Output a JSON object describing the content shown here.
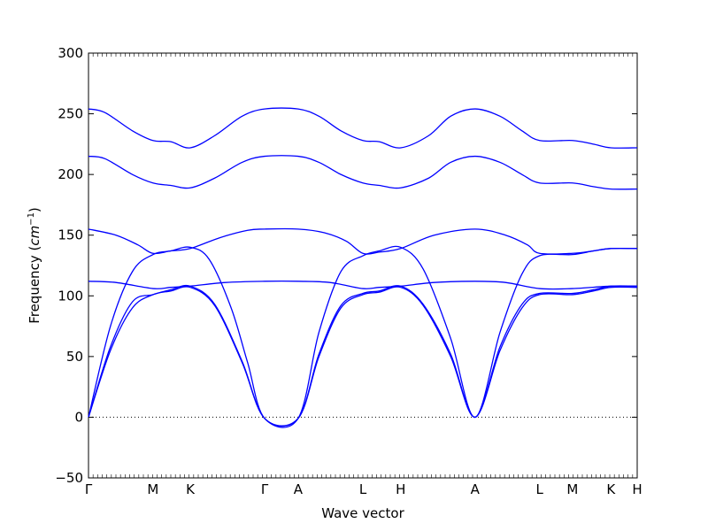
{
  "chart_data": {
    "type": "line",
    "xlabel": "Wave vector",
    "ylabel": "Frequency",
    "ylabel_unit": "cm",
    "ylabel_unit_exp": "−1",
    "ylim": [
      -50,
      300
    ],
    "yticks": [
      -50,
      0,
      50,
      100,
      150,
      200,
      250,
      300
    ],
    "xlim": [
      0,
      12
    ],
    "xticks": [
      {
        "label": "Γ",
        "x": 0
      },
      {
        "label": "M",
        "x": 1.175
      },
      {
        "label": "K",
        "x": 1.855
      },
      {
        "label": "Γ",
        "x": 3.21
      },
      {
        "label": "A",
        "x": 3.82
      },
      {
        "label": "L",
        "x": 5.0
      },
      {
        "label": "H",
        "x": 5.69
      },
      {
        "label": "A",
        "x": 7.045
      },
      {
        "label": "L",
        "x": 8.22
      },
      {
        "label": "M",
        "x": 8.82
      },
      {
        "label": "K",
        "x": 9.52
      },
      {
        "label": "H",
        "x": 10.0
      }
    ],
    "zero_line": true,
    "line_color": "#0000ff",
    "series": [
      {
        "points": [
          [
            0,
            0
          ],
          [
            0.4,
            55
          ],
          [
            0.8,
            90
          ],
          [
            1.175,
            101
          ],
          [
            1.5,
            104
          ],
          [
            1.855,
            107
          ],
          [
            2.3,
            92
          ],
          [
            2.8,
            45
          ],
          [
            3.21,
            -1
          ],
          [
            3.82,
            -1
          ],
          [
            4.2,
            50
          ],
          [
            4.6,
            90
          ],
          [
            5.0,
            101
          ],
          [
            5.3,
            103
          ],
          [
            5.69,
            107
          ],
          [
            6.1,
            92
          ],
          [
            6.6,
            50
          ],
          [
            7.045,
            0
          ],
          [
            7.5,
            55
          ],
          [
            7.9,
            90
          ],
          [
            8.22,
            101
          ],
          [
            8.82,
            101
          ],
          [
            9.2,
            104
          ],
          [
            9.52,
            107
          ],
          [
            10.0,
            107
          ]
        ]
      },
      {
        "points": [
          [
            0,
            0
          ],
          [
            0.4,
            58
          ],
          [
            0.8,
            95
          ],
          [
            1.175,
            101
          ],
          [
            1.5,
            105
          ],
          [
            1.855,
            108
          ],
          [
            2.3,
            93
          ],
          [
            2.8,
            46
          ],
          [
            3.21,
            -1
          ],
          [
            3.82,
            -1
          ],
          [
            4.2,
            52
          ],
          [
            4.6,
            92
          ],
          [
            5.0,
            102
          ],
          [
            5.3,
            104
          ],
          [
            5.69,
            108
          ],
          [
            6.1,
            93
          ],
          [
            6.6,
            52
          ],
          [
            7.045,
            0
          ],
          [
            7.5,
            58
          ],
          [
            7.9,
            93
          ],
          [
            8.22,
            102
          ],
          [
            8.82,
            102
          ],
          [
            9.2,
            105
          ],
          [
            9.52,
            108
          ],
          [
            10.0,
            108
          ]
        ]
      },
      {
        "points": [
          [
            0,
            0
          ],
          [
            0.4,
            75
          ],
          [
            0.8,
            120
          ],
          [
            1.175,
            134
          ],
          [
            1.5,
            137
          ],
          [
            1.855,
            140
          ],
          [
            2.2,
            130
          ],
          [
            2.6,
            90
          ],
          [
            2.9,
            45
          ],
          [
            3.21,
            -1
          ],
          [
            3.82,
            -1
          ],
          [
            4.2,
            70
          ],
          [
            4.6,
            120
          ],
          [
            5.0,
            133
          ],
          [
            5.3,
            137
          ],
          [
            5.69,
            140
          ],
          [
            6.1,
            122
          ],
          [
            6.6,
            65
          ],
          [
            7.045,
            0
          ],
          [
            7.5,
            70
          ],
          [
            7.9,
            118
          ],
          [
            8.22,
            133
          ],
          [
            8.82,
            134
          ],
          [
            9.2,
            137
          ],
          [
            9.52,
            139
          ],
          [
            10.0,
            139
          ]
        ]
      },
      {
        "points": [
          [
            0,
            112
          ],
          [
            0.5,
            111
          ],
          [
            1.175,
            106
          ],
          [
            1.5,
            107
          ],
          [
            1.855,
            108
          ],
          [
            2.5,
            111
          ],
          [
            3.21,
            112
          ],
          [
            3.82,
            112
          ],
          [
            4.4,
            111
          ],
          [
            5.0,
            106
          ],
          [
            5.3,
            107
          ],
          [
            5.69,
            108
          ],
          [
            6.3,
            111
          ],
          [
            7.045,
            112
          ],
          [
            7.6,
            111
          ],
          [
            8.22,
            106
          ],
          [
            8.82,
            106
          ],
          [
            9.52,
            108
          ],
          [
            10.0,
            108
          ]
        ]
      },
      {
        "points": [
          [
            0,
            155
          ],
          [
            0.5,
            150
          ],
          [
            0.9,
            142
          ],
          [
            1.175,
            135
          ],
          [
            1.5,
            137
          ],
          [
            1.855,
            139
          ],
          [
            2.4,
            148
          ],
          [
            2.9,
            154
          ],
          [
            3.21,
            155
          ],
          [
            3.82,
            155
          ],
          [
            4.3,
            152
          ],
          [
            4.7,
            145
          ],
          [
            5.0,
            135
          ],
          [
            5.3,
            136
          ],
          [
            5.69,
            139
          ],
          [
            6.3,
            150
          ],
          [
            7.045,
            155
          ],
          [
            7.6,
            150
          ],
          [
            8.0,
            142
          ],
          [
            8.22,
            135
          ],
          [
            8.82,
            135
          ],
          [
            9.2,
            137
          ],
          [
            9.52,
            139
          ],
          [
            10.0,
            139
          ]
        ]
      },
      {
        "points": [
          [
            0,
            215
          ],
          [
            0.3,
            213
          ],
          [
            0.8,
            200
          ],
          [
            1.175,
            193
          ],
          [
            1.5,
            191
          ],
          [
            1.855,
            189
          ],
          [
            2.3,
            197
          ],
          [
            2.8,
            210
          ],
          [
            3.21,
            215
          ],
          [
            3.82,
            215
          ],
          [
            4.2,
            210
          ],
          [
            4.6,
            200
          ],
          [
            5.0,
            193
          ],
          [
            5.3,
            191
          ],
          [
            5.69,
            189
          ],
          [
            6.2,
            197
          ],
          [
            6.6,
            210
          ],
          [
            7.045,
            215
          ],
          [
            7.5,
            210
          ],
          [
            7.9,
            200
          ],
          [
            8.22,
            193
          ],
          [
            8.82,
            193
          ],
          [
            9.2,
            190
          ],
          [
            9.52,
            188
          ],
          [
            10.0,
            188
          ]
        ]
      },
      {
        "points": [
          [
            0,
            254
          ],
          [
            0.3,
            251
          ],
          [
            0.8,
            236
          ],
          [
            1.175,
            228
          ],
          [
            1.5,
            227
          ],
          [
            1.855,
            222
          ],
          [
            2.3,
            232
          ],
          [
            2.8,
            248
          ],
          [
            3.21,
            254
          ],
          [
            3.82,
            254
          ],
          [
            4.2,
            248
          ],
          [
            4.6,
            236
          ],
          [
            5.0,
            228
          ],
          [
            5.3,
            227
          ],
          [
            5.69,
            222
          ],
          [
            6.2,
            232
          ],
          [
            6.6,
            248
          ],
          [
            7.045,
            254
          ],
          [
            7.5,
            248
          ],
          [
            7.9,
            236
          ],
          [
            8.22,
            228
          ],
          [
            8.82,
            228
          ],
          [
            9.2,
            225
          ],
          [
            9.52,
            222
          ],
          [
            10.0,
            222
          ]
        ]
      }
    ]
  }
}
